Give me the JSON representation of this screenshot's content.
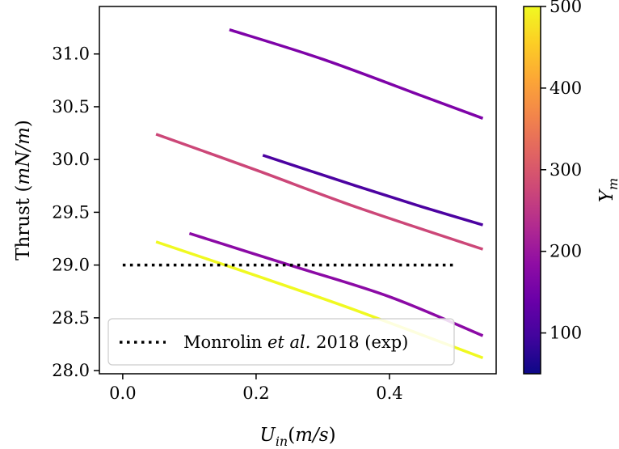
{
  "chart_data": {
    "type": "line",
    "title": "",
    "xlabel": "U_in(m/s)",
    "ylabel": "Thrust (mN/m)",
    "xlim": [
      -0.035,
      0.56
    ],
    "ylim": [
      27.97,
      31.45
    ],
    "xticks": [
      0.0,
      0.2,
      0.4
    ],
    "xtick_labels": [
      "0.0",
      "0.2",
      "0.4"
    ],
    "yticks": [
      28.0,
      28.5,
      29.0,
      29.5,
      30.0,
      30.5,
      31.0
    ],
    "ytick_labels": [
      "28.0",
      "28.5",
      "29.0",
      "29.5",
      "30.0",
      "30.5",
      "31.0"
    ],
    "grid": false,
    "legend": {
      "location": "lower-left",
      "entries": [
        {
          "label_prefix": "Monrolin ",
          "label_italic": "et al.",
          "label_suffix": " 2018 (exp)",
          "style": "dotted",
          "color": "#000000"
        }
      ]
    },
    "colorbar": {
      "label": "Y_m",
      "min": 50,
      "max": 500,
      "ticks": [
        100,
        200,
        300,
        400,
        500
      ],
      "tick_labels": [
        "100",
        "200",
        "300",
        "400",
        "500"
      ],
      "colormap": "plasma"
    },
    "reference_line": {
      "name": "Monrolin et al. 2018 (exp)",
      "x": [
        0.0,
        0.5
      ],
      "y": [
        29.0,
        29.0
      ],
      "style": "dotted"
    },
    "series": [
      {
        "x": [
          0.16,
          0.3,
          0.45,
          0.54
        ],
        "y": [
          31.23,
          30.95,
          30.6,
          30.39
        ],
        "color": "#7e03a8"
      },
      {
        "x": [
          0.05,
          0.2,
          0.35,
          0.54
        ],
        "y": [
          30.24,
          29.9,
          29.55,
          29.15
        ],
        "color": "#cc4778"
      },
      {
        "x": [
          0.21,
          0.35,
          0.45,
          0.54
        ],
        "y": [
          30.04,
          29.75,
          29.55,
          29.38
        ],
        "color": "#4c02a1"
      },
      {
        "x": [
          0.1,
          0.25,
          0.4,
          0.54
        ],
        "y": [
          29.3,
          29.0,
          28.7,
          28.33
        ],
        "color": "#8b0aa5"
      },
      {
        "x": [
          0.05,
          0.2,
          0.35,
          0.54
        ],
        "y": [
          29.22,
          28.9,
          28.57,
          28.12
        ],
        "color": "#f0f921"
      }
    ]
  }
}
